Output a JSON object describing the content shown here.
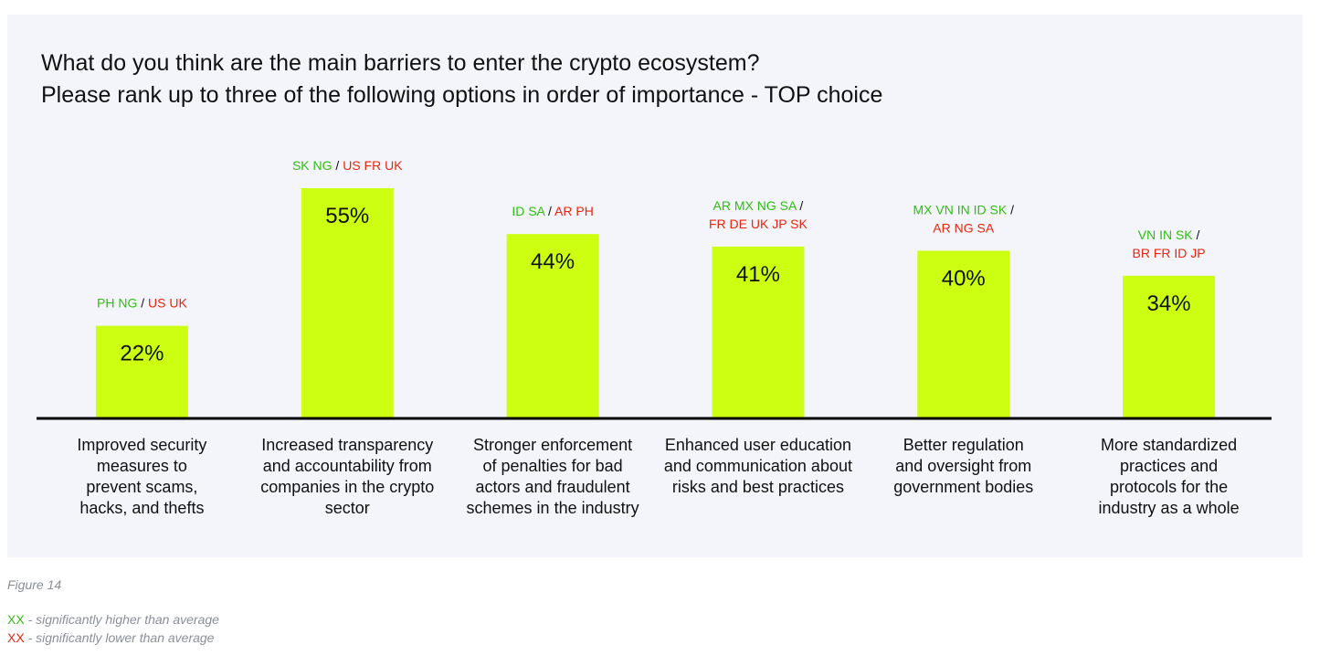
{
  "colors": {
    "bar": "#ccff11",
    "axis": "#000000",
    "text": "#111111",
    "higher": "#2fbf0e",
    "lower": "#e8260d",
    "panel": "#f3f5fb",
    "muted": "#8a8f99"
  },
  "header": {
    "title": "What do you think are the main barriers to enter the crypto ecosystem?",
    "subtitle": "Please rank up to three of the following options in order of importance - TOP choice"
  },
  "chart_data": {
    "type": "bar",
    "title": "What do you think are the main barriers to enter the crypto ecosystem?",
    "subtitle": "Please rank up to three of the following options in order of importance - TOP choice",
    "ylim": [
      0,
      55
    ],
    "grid": false,
    "categories": [
      [
        "Improved security",
        "measures to",
        "prevent scams,",
        "hacks, and thefts"
      ],
      [
        "Increased transparency",
        "and accountability from",
        "companies in the crypto",
        "sector"
      ],
      [
        "Stronger enforcement",
        "of penalties for bad",
        "actors and fraudulent",
        "schemes in the industry"
      ],
      [
        "Enhanced user education",
        "and communication about",
        "risks and best practices"
      ],
      [
        "Better regulation",
        "and oversight from",
        "government bodies"
      ],
      [
        "More standardized",
        "practices and",
        "protocols for the",
        "industry as a whole"
      ]
    ],
    "values": [
      22,
      55,
      44,
      41,
      40,
      34
    ],
    "value_labels": [
      "22%",
      "55%",
      "44%",
      "41%",
      "40%",
      "34%"
    ],
    "annotations": [
      {
        "lines": [
          {
            "higher": "PH NG",
            "sep": " / ",
            "lower": "US UK"
          }
        ]
      },
      {
        "lines": [
          {
            "higher": "SK NG",
            "sep": " / ",
            "lower": "US FR UK"
          }
        ]
      },
      {
        "lines": [
          {
            "higher": "ID SA",
            "sep": " / ",
            "lower": "AR PH"
          }
        ]
      },
      {
        "lines": [
          {
            "higher": "AR MX NG SA",
            "sep": " /",
            "lower": ""
          },
          {
            "higher": "",
            "sep": "",
            "lower": "FR DE UK JP SK"
          }
        ]
      },
      {
        "lines": [
          {
            "higher": "MX VN IN ID SK",
            "sep": " /",
            "lower": ""
          },
          {
            "higher": "",
            "sep": "",
            "lower": "AR NG SA"
          }
        ]
      },
      {
        "lines": [
          {
            "higher": "VN IN SK",
            "sep": " /",
            "lower": ""
          },
          {
            "higher": "",
            "sep": "",
            "lower": "BR FR ID JP"
          }
        ]
      }
    ]
  },
  "caption": "Figure 14",
  "legend": {
    "higher": {
      "marker": "XX",
      "text": " - significantly higher than average"
    },
    "lower": {
      "marker": "XX",
      "text": " - significantly lower than average"
    }
  }
}
